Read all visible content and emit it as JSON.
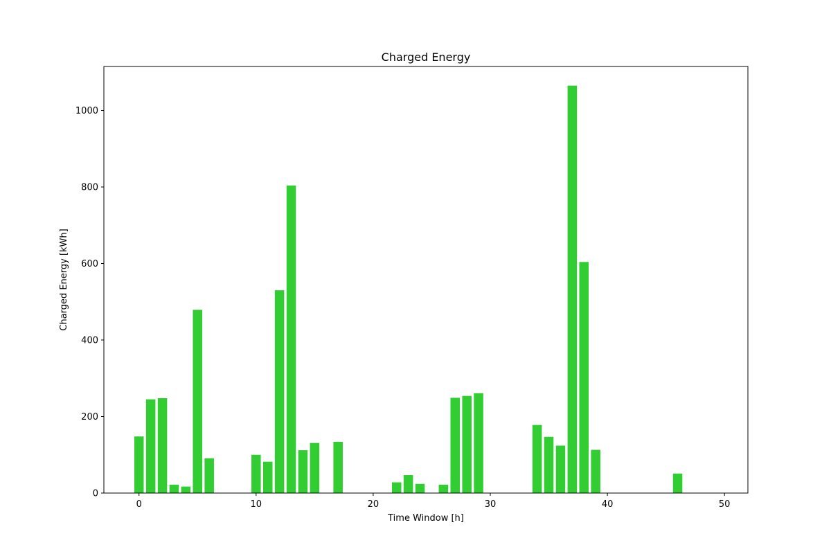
{
  "chart_data": {
    "type": "bar",
    "title": "Charged Energy",
    "xlabel": "Time Window [h]",
    "ylabel": "Charged Energy [kWh]",
    "xlim": [
      -3,
      52
    ],
    "ylim": [
      0,
      1115
    ],
    "xticks": [
      0,
      10,
      20,
      30,
      40,
      50
    ],
    "yticks": [
      0,
      200,
      400,
      600,
      800,
      1000
    ],
    "bar_color": "#32cd32",
    "grid": false,
    "x": [
      0,
      1,
      2,
      3,
      4,
      5,
      6,
      10,
      11,
      12,
      13,
      14,
      15,
      17,
      22,
      23,
      24,
      26,
      27,
      28,
      29,
      34,
      35,
      36,
      37,
      38,
      39,
      46
    ],
    "values": [
      148,
      245,
      248,
      22,
      17,
      479,
      91,
      100,
      82,
      530,
      804,
      112,
      131,
      134,
      28,
      47,
      24,
      22,
      249,
      254,
      261,
      178,
      147,
      124,
      1065,
      604,
      113,
      51
    ]
  }
}
